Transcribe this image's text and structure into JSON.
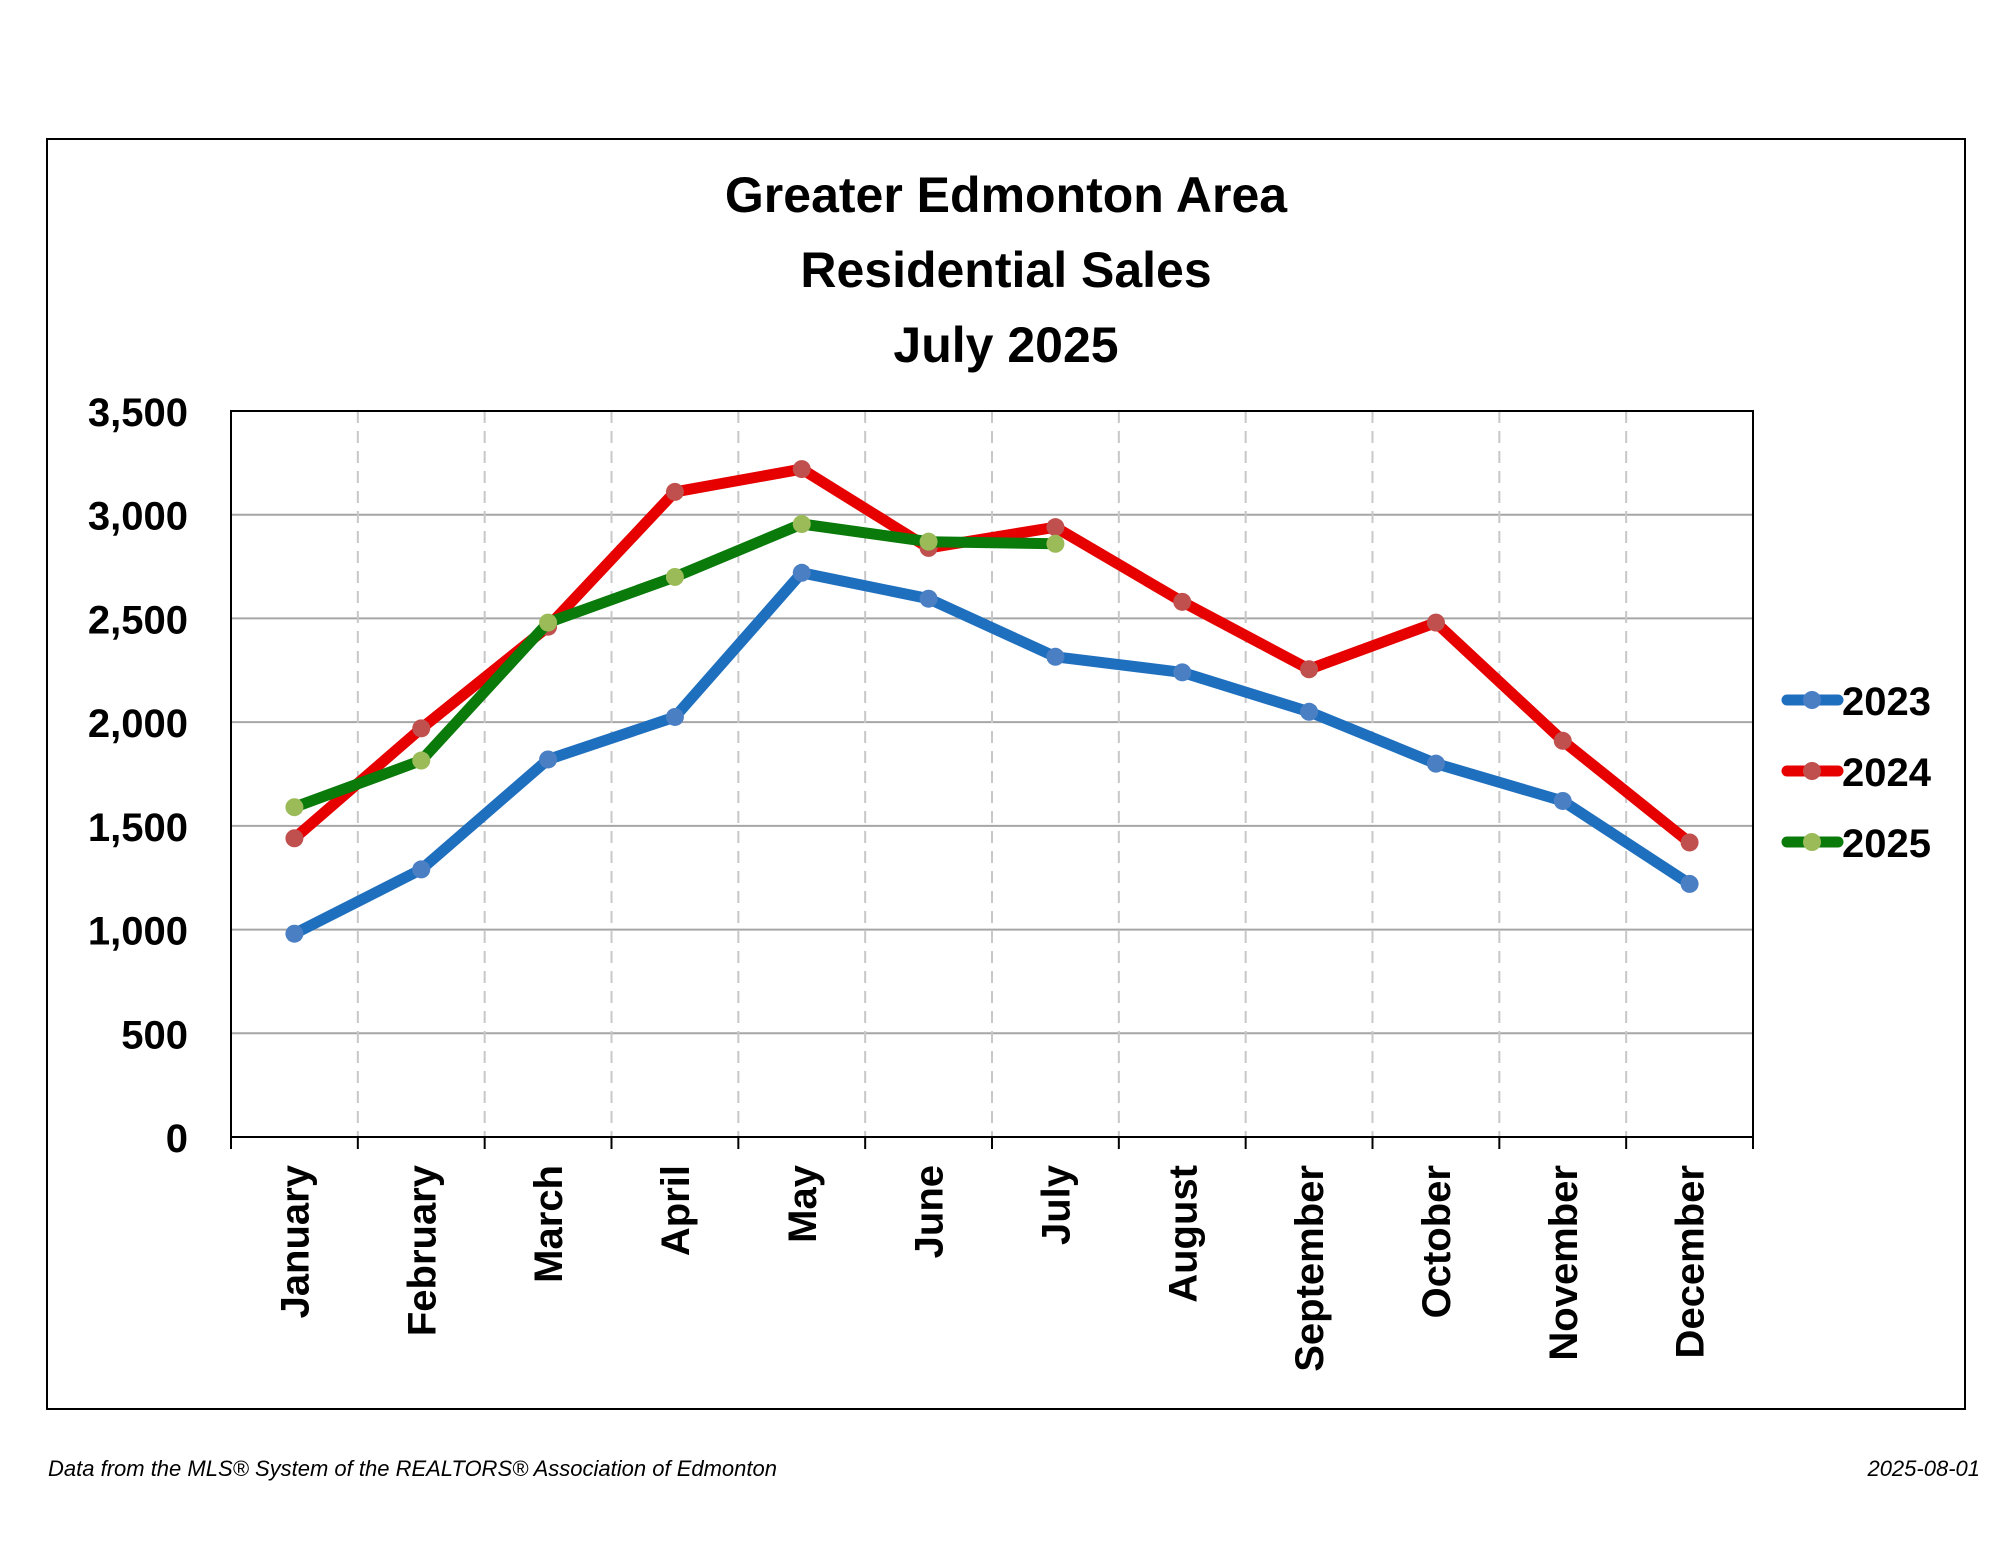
{
  "chart_data": {
    "type": "line",
    "title_lines": [
      "Greater Edmonton Area",
      "Residential Sales",
      "July 2025"
    ],
    "categories": [
      "January",
      "February",
      "March",
      "April",
      "May",
      "June",
      "July",
      "August",
      "September",
      "October",
      "November",
      "December"
    ],
    "series": [
      {
        "name": "2023",
        "color": "#1f6fbf",
        "marker": "#4a7fc4",
        "values": [
          980,
          1290,
          1820,
          2025,
          2720,
          2595,
          2315,
          2240,
          2050,
          1800,
          1620,
          1220
        ]
      },
      {
        "name": "2024",
        "color": "#e60000",
        "marker": "#c0504d",
        "values": [
          1440,
          1970,
          2460,
          3110,
          3220,
          2840,
          2940,
          2580,
          2255,
          2480,
          1910,
          1420
        ]
      },
      {
        "name": "2025",
        "color": "#0a7a0a",
        "marker": "#9bbb59",
        "values": [
          1590,
          1815,
          2480,
          2700,
          2955,
          2870,
          2860,
          null,
          null,
          null,
          null,
          null
        ]
      }
    ],
    "ylim": [
      0,
      3500
    ],
    "yticks": [
      0,
      500,
      1000,
      1500,
      2000,
      2500,
      3000,
      3500
    ],
    "ytick_labels": [
      "0",
      "500",
      "1,000",
      "1,500",
      "2,000",
      "2,500",
      "3,000",
      "3,500"
    ],
    "grid": {
      "horizontal": "solid",
      "vertical": "dashed"
    },
    "legend_position": "right"
  },
  "footer": {
    "source": "Data from the MLS® System of the REALTORS® Association of Edmonton",
    "date": "2025-08-01"
  }
}
